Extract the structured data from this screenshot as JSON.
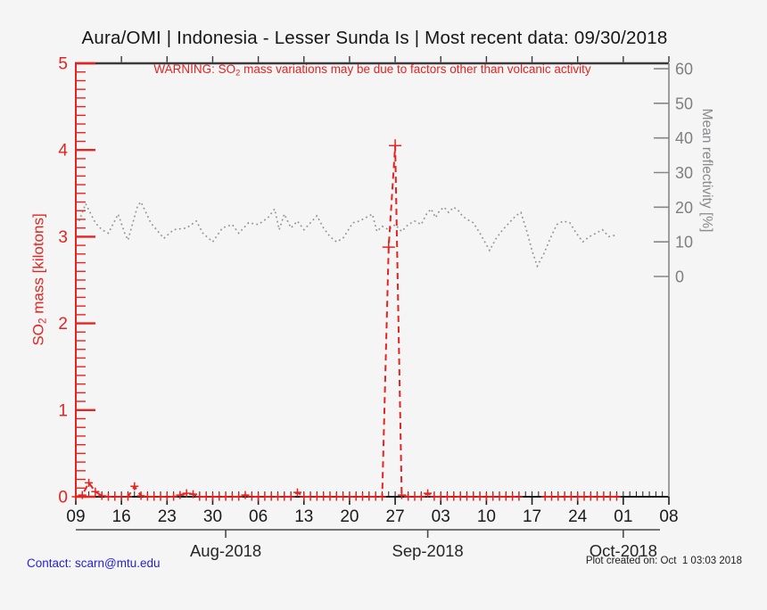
{
  "title": "Aura/OMI | Indonesia - Lesser Sunda Is | Most recent data: 09/30/2018",
  "warning": {
    "prefix": "WARNING: SO",
    "sub": "2",
    "suffix": " mass variations may be due to factors other than volcanic activity"
  },
  "footer": {
    "contact_label": "Contact: scarn@mtu.edu",
    "contact_href": "mailto:scarn@mtu.edu",
    "created": "Plot created on: Oct  1 03:03 2018"
  },
  "colors": {
    "so2_red": "#e42420",
    "reflectivity_gray": "#8f8f92",
    "right_axis_gray": "#87878a",
    "bottom_axis_black": "#1c1c1c",
    "top_axis_dark": "#3a3a3a",
    "month_axis": "#4a4a4a",
    "contact_blue": "#2424cf",
    "background": "#f5f5f6"
  },
  "chart_data": {
    "type": "line",
    "title": "Aura/OMI | Indonesia - Lesser Sunda Is | Most recent data: 09/30/2018",
    "x_axis": {
      "start_date": "2018-07-09",
      "end_date": "2018-10-08",
      "days_total": 91,
      "weekly_tick_days": [
        0,
        7,
        14,
        21,
        28,
        35,
        42,
        49,
        56,
        63,
        70,
        77,
        84,
        91
      ],
      "weekly_tick_labels": [
        "09",
        "16",
        "23",
        "30",
        "06",
        "13",
        "20",
        "27",
        "03",
        "10",
        "17",
        "24",
        "01",
        "08"
      ],
      "months": [
        {
          "label": "Aug-2018",
          "day": 23
        },
        {
          "label": "Sep-2018",
          "day": 54
        },
        {
          "label": "Oct-2018",
          "day": 84
        }
      ]
    },
    "y_left": {
      "label": "SO2 mass [kilotons]",
      "label_parts": {
        "prefix": "SO",
        "sub": "2",
        "suffix": " mass [kilotons]"
      },
      "min": 0,
      "max": 5,
      "ticks": [
        0,
        1,
        2,
        3,
        4,
        5
      ],
      "minor_step": 0.1
    },
    "y_right": {
      "label": "Mean reflectivity [%]",
      "min": 0,
      "max": 60,
      "ticks": [
        0,
        10,
        20,
        30,
        40,
        50,
        60
      ]
    },
    "series": [
      {
        "name": "SO2 mass [kilotons]",
        "axis": "left",
        "line_style": "dashed",
        "marker": "plus",
        "units": "kilotons",
        "points": [
          [
            0,
            0
          ],
          [
            1,
            0.02
          ],
          [
            2,
            0.16
          ],
          [
            3,
            0.06
          ],
          [
            4,
            0.01
          ],
          [
            5,
            0
          ],
          [
            6,
            0
          ],
          [
            7,
            0
          ],
          [
            8,
            0
          ],
          [
            9,
            0.12
          ],
          [
            10,
            0.01
          ],
          [
            11,
            0
          ],
          [
            12,
            0
          ],
          [
            13,
            0
          ],
          [
            14,
            0
          ],
          [
            15,
            0
          ],
          [
            16,
            0.02
          ],
          [
            17,
            0.04
          ],
          [
            18,
            0.03
          ],
          [
            19,
            0
          ],
          [
            20,
            0
          ],
          [
            21,
            0
          ],
          [
            22,
            0
          ],
          [
            23,
            0
          ],
          [
            24,
            0
          ],
          [
            25,
            0
          ],
          [
            26,
            0.02
          ],
          [
            27,
            0
          ],
          [
            28,
            0
          ],
          [
            29,
            0
          ],
          [
            30,
            0
          ],
          [
            31,
            0
          ],
          [
            32,
            0
          ],
          [
            33,
            0
          ],
          [
            34,
            0.05
          ],
          [
            35,
            0
          ],
          [
            36,
            0
          ],
          [
            37,
            0
          ],
          [
            38,
            0
          ],
          [
            39,
            0
          ],
          [
            40,
            0
          ],
          [
            41,
            0
          ],
          [
            42,
            0
          ],
          [
            43,
            0
          ],
          [
            44,
            0
          ],
          [
            45,
            0
          ],
          [
            46,
            0
          ],
          [
            47,
            0
          ],
          [
            48,
            2.88
          ],
          [
            49,
            4.05
          ],
          [
            50,
            0.02
          ],
          [
            51,
            0
          ],
          [
            52,
            0
          ],
          [
            53,
            0
          ],
          [
            54,
            0.04
          ],
          [
            55,
            0
          ],
          [
            56,
            0
          ],
          [
            57,
            0
          ],
          [
            58,
            0
          ],
          [
            59,
            0
          ],
          [
            60,
            0
          ],
          [
            61,
            0
          ],
          [
            62,
            0
          ],
          [
            63,
            0
          ],
          [
            64,
            0
          ],
          [
            65,
            0
          ],
          [
            66,
            0
          ],
          [
            67,
            0
          ],
          [
            68,
            0
          ],
          [
            69,
            null
          ],
          [
            70,
            null
          ],
          [
            71,
            null
          ],
          [
            72,
            0
          ],
          [
            73,
            0
          ],
          [
            74,
            0
          ],
          [
            75,
            0
          ],
          [
            76,
            0
          ],
          [
            77,
            0
          ],
          [
            78,
            0
          ],
          [
            79,
            0
          ],
          [
            80,
            0
          ],
          [
            81,
            0
          ],
          [
            82,
            0
          ],
          [
            83,
            0
          ]
        ]
      },
      {
        "name": "Mean reflectivity [%]",
        "axis": "right",
        "line_style": "dotted",
        "marker": "none",
        "units": "%",
        "points": [
          [
            0.5,
            16
          ],
          [
            1.5,
            21
          ],
          [
            3,
            15.5
          ],
          [
            4,
            13.5
          ],
          [
            5,
            12.5
          ],
          [
            6.5,
            18
          ],
          [
            7.5,
            12.5
          ],
          [
            8,
            10.5
          ],
          [
            9.5,
            20.5
          ],
          [
            10,
            21.5
          ],
          [
            11.5,
            15.5
          ],
          [
            13.5,
            11
          ],
          [
            15,
            13.5
          ],
          [
            17,
            14
          ],
          [
            18.5,
            16
          ],
          [
            19.5,
            12.5
          ],
          [
            21,
            10
          ],
          [
            22.5,
            14
          ],
          [
            24,
            15
          ],
          [
            25,
            12.5
          ],
          [
            26.5,
            15.5
          ],
          [
            28,
            15
          ],
          [
            29.5,
            17
          ],
          [
            30.5,
            19.5
          ],
          [
            31.2,
            13.5
          ],
          [
            32,
            18
          ],
          [
            33,
            14
          ],
          [
            34,
            16
          ],
          [
            35,
            13.5
          ],
          [
            36,
            15.5
          ],
          [
            37,
            17.5
          ],
          [
            38,
            14
          ],
          [
            39,
            11.5
          ],
          [
            40,
            10
          ],
          [
            41,
            11
          ],
          [
            42.5,
            15.5
          ],
          [
            43.5,
            16
          ],
          [
            44.5,
            17
          ],
          [
            45.5,
            18
          ],
          [
            46.2,
            13
          ],
          [
            47,
            14.5
          ],
          [
            48,
            13.5
          ],
          [
            49,
            15
          ],
          [
            50,
            13
          ],
          [
            51,
            15
          ],
          [
            52,
            16
          ],
          [
            53,
            15
          ],
          [
            53.8,
            18
          ],
          [
            54.5,
            19.5
          ],
          [
            55.2,
            17
          ],
          [
            55.8,
            19
          ],
          [
            56.5,
            20
          ],
          [
            57.2,
            18.5
          ],
          [
            58,
            20
          ],
          [
            58.7,
            19
          ],
          [
            59.3,
            17.5
          ],
          [
            60,
            16.5
          ],
          [
            61,
            15.5
          ],
          [
            62,
            12.5
          ],
          [
            63.5,
            7.5
          ],
          [
            64.5,
            11
          ],
          [
            65.5,
            13.5
          ],
          [
            66.5,
            15.5
          ],
          [
            67.5,
            17.5
          ],
          [
            68.3,
            18.5
          ],
          [
            69.3,
            12.5
          ],
          [
            70,
            7.5
          ],
          [
            70.8,
            3
          ],
          [
            71.8,
            6.5
          ],
          [
            72.8,
            11
          ],
          [
            73.8,
            15
          ],
          [
            74.8,
            16
          ],
          [
            75.8,
            15.5
          ],
          [
            76.8,
            12.5
          ],
          [
            77.8,
            10
          ],
          [
            78.8,
            11.5
          ],
          [
            79.8,
            12.5
          ],
          [
            80.8,
            13.5
          ],
          [
            81.8,
            11.5
          ],
          [
            83,
            12
          ]
        ]
      }
    ]
  }
}
